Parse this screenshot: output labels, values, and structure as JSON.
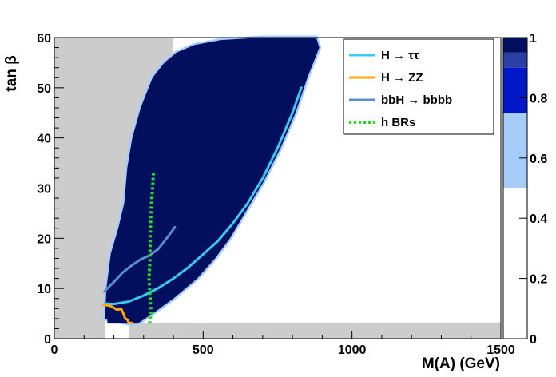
{
  "chart_data": {
    "type": "heatmap",
    "xlabel": "M(A) (GeV)",
    "ylabel": "tan β",
    "xlim": [
      0,
      1500
    ],
    "ylim": [
      0,
      60
    ],
    "x_ticks": [
      0,
      500,
      1000,
      1500
    ],
    "y_ticks": [
      0,
      10,
      20,
      30,
      40,
      50,
      60
    ],
    "grid": false,
    "legend_position": "top-right",
    "colorbar": {
      "range": [
        0,
        1
      ],
      "ticks": [
        0,
        0.2,
        0.4,
        0.6,
        0.8,
        1
      ],
      "bands": [
        {
          "from": 0.0,
          "to": 0.5,
          "color": "#ffffff"
        },
        {
          "from": 0.5,
          "to": 0.75,
          "color": "#a6cdfa"
        },
        {
          "from": 0.75,
          "to": 0.9,
          "color": "#0018c8"
        },
        {
          "from": 0.9,
          "to": 0.95,
          "color": "#2a3fa6"
        },
        {
          "from": 0.95,
          "to": 1.0,
          "color": "#020f5e"
        }
      ]
    },
    "excluded_color": "#cccccc",
    "allowed_region": {
      "color": "#020f5e",
      "polygon": [
        [
          170,
          4
        ],
        [
          175,
          10
        ],
        [
          190,
          17
        ],
        [
          215,
          22
        ],
        [
          235,
          27
        ],
        [
          245,
          34
        ],
        [
          262,
          40
        ],
        [
          290,
          46
        ],
        [
          330,
          52
        ],
        [
          370,
          55
        ],
        [
          410,
          57
        ],
        [
          470,
          58.5
        ],
        [
          560,
          59.5
        ],
        [
          700,
          60
        ],
        [
          880,
          60
        ],
        [
          890,
          58
        ],
        [
          850,
          52
        ],
        [
          810,
          45
        ],
        [
          760,
          38
        ],
        [
          700,
          31
        ],
        [
          640,
          25
        ],
        [
          590,
          20
        ],
        [
          540,
          16
        ],
        [
          480,
          12
        ],
        [
          400,
          8
        ],
        [
          330,
          5
        ],
        [
          280,
          3
        ],
        [
          250,
          3
        ]
      ]
    },
    "series": [
      {
        "name": "H → ττ",
        "color": "#38c8f0",
        "style": "solid",
        "points": [
          [
            170,
            7
          ],
          [
            200,
            6.9
          ],
          [
            250,
            7.4
          ],
          [
            300,
            8.6
          ],
          [
            350,
            10.1
          ],
          [
            400,
            12
          ],
          [
            450,
            14.2
          ],
          [
            500,
            16.8
          ],
          [
            550,
            19.5
          ],
          [
            600,
            23
          ],
          [
            650,
            27
          ],
          [
            700,
            32
          ],
          [
            750,
            38
          ],
          [
            800,
            45
          ],
          [
            830,
            50
          ]
        ]
      },
      {
        "name": "H → ZZ",
        "color": "#ffaa00",
        "style": "solid",
        "points": [
          [
            165,
            6.8
          ],
          [
            190,
            6.5
          ],
          [
            210,
            5.8
          ],
          [
            225,
            5.9
          ],
          [
            232,
            5
          ],
          [
            238,
            4
          ],
          [
            245,
            3.8
          ],
          [
            250,
            3.2
          ],
          [
            262,
            3.1
          ]
        ]
      },
      {
        "name": "bbH → bbbb",
        "color": "#5a8cd0",
        "style": "solid",
        "points": [
          [
            168,
            9.4
          ],
          [
            200,
            11.3
          ],
          [
            230,
            13.2
          ],
          [
            260,
            14.6
          ],
          [
            290,
            15.8
          ],
          [
            320,
            16.6
          ],
          [
            350,
            17.9
          ],
          [
            380,
            20.2
          ],
          [
            405,
            22.2
          ]
        ]
      },
      {
        "name": "h BRs",
        "color": "#22dd22",
        "style": "dotted",
        "points": [
          [
            320,
            3
          ],
          [
            325,
            5
          ],
          [
            322,
            8
          ],
          [
            318,
            12
          ],
          [
            321,
            15
          ],
          [
            322,
            19
          ],
          [
            323,
            22
          ],
          [
            325,
            26
          ],
          [
            330,
            30
          ],
          [
            333,
            33
          ]
        ]
      }
    ]
  }
}
